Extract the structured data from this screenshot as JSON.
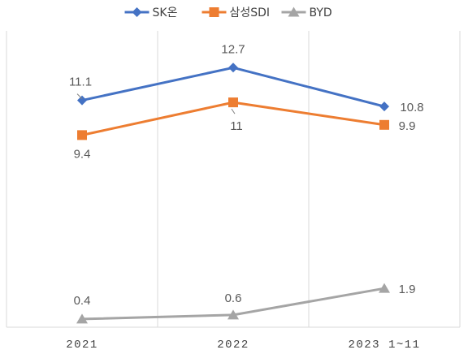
{
  "chart_data": {
    "type": "line",
    "categories": [
      "2021",
      "2022",
      "2023 1~11"
    ],
    "series": [
      {
        "name": "SK온",
        "values": [
          11.1,
          12.7,
          10.8
        ],
        "color": "#4472C4",
        "marker": "diamond"
      },
      {
        "name": "삼성SDI",
        "values": [
          9.4,
          11,
          9.9
        ],
        "color": "#ED7D31",
        "marker": "square"
      },
      {
        "name": "BYD",
        "values": [
          0.4,
          0.6,
          1.9
        ],
        "color": "#A5A5A5",
        "marker": "triangle"
      }
    ],
    "grid": "vertical",
    "legend": "top-center",
    "data_labels": true,
    "title": "",
    "xlabel": "",
    "ylabel": ""
  }
}
